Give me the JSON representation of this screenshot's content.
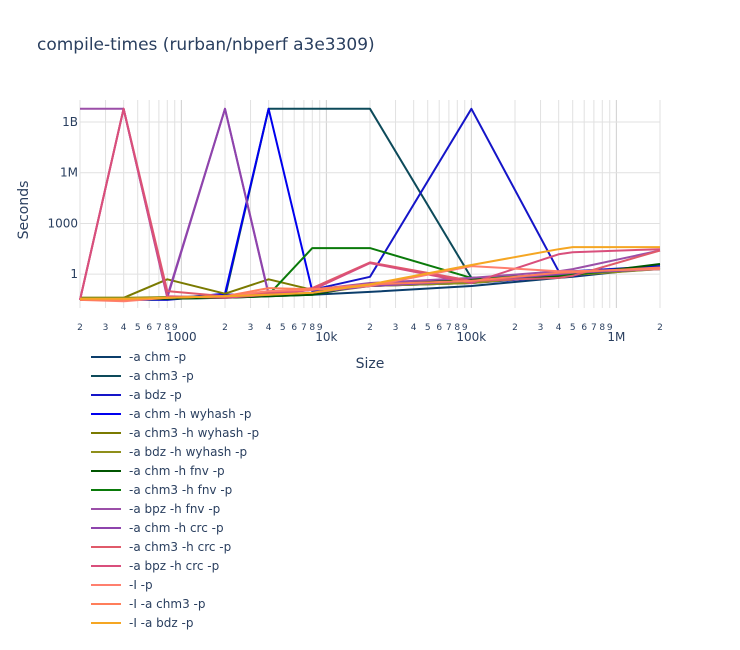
{
  "chart_data": {
    "type": "line",
    "title": "compile-times (rurban/nbperf a3e3309)",
    "xlabel": "Size",
    "ylabel": "Seconds",
    "xscale": "log",
    "yscale": "log",
    "xlim": [
      200,
      2000000
    ],
    "ylim": [
      0.01,
      20000000000
    ],
    "grid": true,
    "legend_position": "bottom",
    "x_major_ticks": [
      {
        "value": 1000,
        "label": "1000"
      },
      {
        "value": 10000,
        "label": "10k"
      },
      {
        "value": 100000,
        "label": "100k"
      },
      {
        "value": 1000000,
        "label": "1M"
      }
    ],
    "x_minor_ticks": [
      {
        "value": 200,
        "label": "2"
      },
      {
        "value": 300,
        "label": "3"
      },
      {
        "value": 400,
        "label": "4"
      },
      {
        "value": 500,
        "label": "5"
      },
      {
        "value": 600,
        "label": "6"
      },
      {
        "value": 700,
        "label": "7"
      },
      {
        "value": 800,
        "label": "8"
      },
      {
        "value": 900,
        "label": "9"
      },
      {
        "value": 2000,
        "label": "2"
      },
      {
        "value": 3000,
        "label": "3"
      },
      {
        "value": 4000,
        "label": "4"
      },
      {
        "value": 5000,
        "label": "5"
      },
      {
        "value": 6000,
        "label": "6"
      },
      {
        "value": 7000,
        "label": "7"
      },
      {
        "value": 8000,
        "label": "8"
      },
      {
        "value": 9000,
        "label": "9"
      },
      {
        "value": 20000,
        "label": "2"
      },
      {
        "value": 30000,
        "label": "3"
      },
      {
        "value": 40000,
        "label": "4"
      },
      {
        "value": 50000,
        "label": "5"
      },
      {
        "value": 60000,
        "label": "6"
      },
      {
        "value": 70000,
        "label": "7"
      },
      {
        "value": 80000,
        "label": "8"
      },
      {
        "value": 90000,
        "label": "9"
      },
      {
        "value": 200000,
        "label": "2"
      },
      {
        "value": 300000,
        "label": "3"
      },
      {
        "value": 400000,
        "label": "4"
      },
      {
        "value": 500000,
        "label": "5"
      },
      {
        "value": 600000,
        "label": "6"
      },
      {
        "value": 700000,
        "label": "7"
      },
      {
        "value": 800000,
        "label": "8"
      },
      {
        "value": 900000,
        "label": "9"
      },
      {
        "value": 2000000,
        "label": "2"
      }
    ],
    "y_ticks": [
      {
        "value": 1,
        "label": "1"
      },
      {
        "value": 1000,
        "label": "1000"
      },
      {
        "value": 1000000,
        "label": "1M"
      },
      {
        "value": 1000000000,
        "label": "1B"
      }
    ],
    "x": [
      200,
      400,
      800,
      2000,
      4000,
      8000,
      20000,
      100000,
      400000,
      500000,
      2000000
    ],
    "series": [
      {
        "name": "-a chm -p",
        "color": "#0b3d6b",
        "values": [
          0.03,
          0.03,
          0.035,
          0.04,
          0.05,
          0.06,
          0.09,
          0.2,
          0.6,
          0.7,
          2.5
        ]
      },
      {
        "name": "-a chm3 -p",
        "color": "#0d4a5a",
        "values": [
          0.035,
          0.035,
          0.04,
          0.045,
          6000000000,
          6000000000,
          6000000000,
          0.6,
          0.8,
          1.0,
          2.0
        ]
      },
      {
        "name": "-a bdz -p",
        "color": "#1515c8",
        "values": [
          0.03,
          0.03,
          0.03,
          0.06,
          0.07,
          0.12,
          0.7,
          6000000000,
          1.5,
          1.5,
          3.0
        ]
      },
      {
        "name": "-a chm -h wyhash -p",
        "color": "#0000ee",
        "values": [
          0.03,
          0.03,
          0.035,
          0.07,
          6000000000,
          0.1,
          0.2,
          0.3,
          0.7,
          0.8,
          3.0
        ]
      },
      {
        "name": "-a chm3 -h wyhash -p",
        "color": "#7a7a00",
        "values": [
          0.04,
          0.04,
          0.5,
          0.07,
          0.5,
          0.12,
          0.2,
          0.3,
          0.8,
          1.0,
          2.5
        ]
      },
      {
        "name": "-a bdz -h wyhash -p",
        "color": "#8f8f1a",
        "values": [
          0.04,
          0.04,
          0.045,
          0.05,
          0.06,
          0.07,
          0.2,
          0.3,
          0.8,
          0.9,
          2.0
        ]
      },
      {
        "name": "-a chm -h fnv -p",
        "color": "#005500",
        "values": [
          0.03,
          0.03,
          0.035,
          0.04,
          0.05,
          0.06,
          0.25,
          0.5,
          0.8,
          0.9,
          4.0
        ]
      },
      {
        "name": "-a chm3 -h fnv -p",
        "color": "#0a7a0a",
        "values": [
          0.035,
          0.035,
          0.04,
          0.05,
          0.06,
          35,
          35,
          0.6,
          0.9,
          1.0,
          2.5
        ]
      },
      {
        "name": "-a bpz -h fnv -p",
        "color": "#9b4fa8",
        "values": [
          6000000000,
          6000000000,
          0.05,
          6000000000,
          0.07,
          0.12,
          0.3,
          0.6,
          1.5,
          2.0,
          25
        ]
      },
      {
        "name": "-a chm -h crc -p",
        "color": "#8e44ad",
        "values": [
          0.03,
          6000000000,
          0.04,
          6000000000,
          0.06,
          0.08,
          0.2,
          0.4,
          1.0,
          1.2,
          2.0
        ]
      },
      {
        "name": "-a chm3 -h crc -p",
        "color": "#e05a6a",
        "values": [
          0.03,
          6000000000,
          0.1,
          0.05,
          0.08,
          0.15,
          5,
          0.4,
          0.6,
          0.8,
          25
        ]
      },
      {
        "name": "-a bpz -h crc -p",
        "color": "#d94f7c",
        "values": [
          0.03,
          6000000000,
          0.05,
          0.04,
          0.06,
          0.12,
          4.5,
          0.3,
          15,
          20,
          30
        ]
      },
      {
        "name": "-I -p",
        "color": "#ff7f6e",
        "values": [
          0.03,
          0.025,
          0.04,
          0.05,
          0.1,
          0.12,
          0.2,
          3,
          1.5,
          1.5,
          2.0
        ]
      },
      {
        "name": "-I -a chm3 -p",
        "color": "#ff7e5a",
        "values": [
          0.03,
          0.03,
          0.04,
          0.05,
          0.15,
          0.13,
          0.25,
          0.4,
          1.2,
          1.3,
          2.5
        ]
      },
      {
        "name": "-I -a bdz -p",
        "color": "#f5a623",
        "values": [
          0.035,
          0.035,
          0.04,
          0.05,
          0.06,
          0.08,
          0.25,
          3.5,
          30,
          40,
          40
        ]
      }
    ]
  }
}
